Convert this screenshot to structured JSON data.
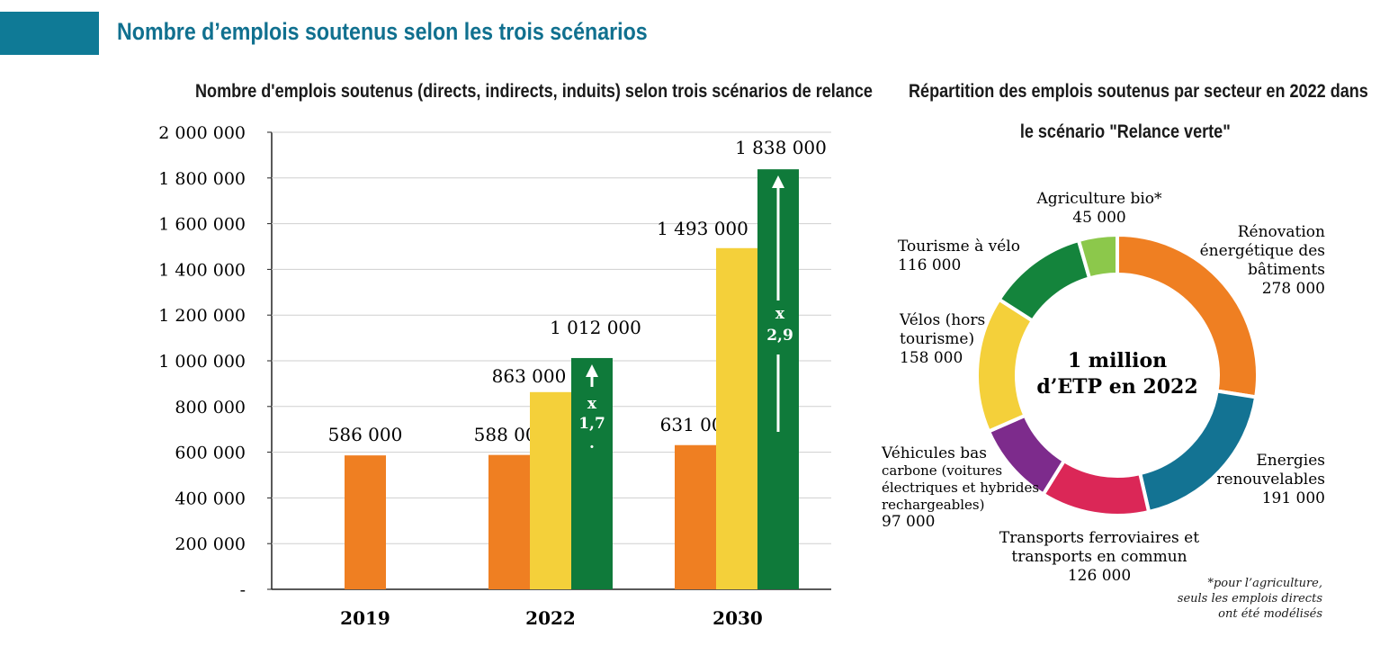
{
  "page": {
    "title": "Nombre d’emplois soutenus selon les trois scénarios",
    "accent_color": "#0f7a96",
    "title_color": "#10708f"
  },
  "chart_data": [
    {
      "type": "bar",
      "title": "Nombre d'emplois soutenus (directs, indirects, induits) selon trois scénarios de relance",
      "categories": [
        "2019",
        "2022",
        "2030"
      ],
      "series": [
        {
          "color": "#ef7f22",
          "values": [
            586000,
            588000,
            631000
          ]
        },
        {
          "color": "#f4d03a",
          "values": [
            null,
            863000,
            1493000
          ]
        },
        {
          "color": "#0f7a3a",
          "values": [
            null,
            1012000,
            1838000
          ]
        }
      ],
      "value_labels": [
        [
          "586 000",
          "588 000",
          "631 000"
        ],
        [
          null,
          "863 000",
          "1 493 000"
        ],
        [
          null,
          "1 012 000",
          "1 838 000"
        ]
      ],
      "ylim": [
        0,
        2000000
      ],
      "yticks": [
        0,
        200000,
        400000,
        600000,
        800000,
        1000000,
        1200000,
        1400000,
        1600000,
        1800000,
        2000000
      ],
      "ytick_labels": [
        "-",
        "200 000",
        "400 000",
        "600 000",
        "800 000",
        "1 000 000",
        "1 200 000",
        "1 400 000",
        "1 600 000",
        "1 800 000",
        "2 000 000"
      ],
      "annotations": [
        {
          "category": "2022",
          "lines": [
            "x",
            "1,7",
            "."
          ]
        },
        {
          "category": "2030",
          "lines": [
            "x",
            "2,9"
          ]
        }
      ],
      "xlabel": "",
      "ylabel": "",
      "grid": true
    },
    {
      "type": "pie",
      "title_lines": [
        "Répartition des emplois soutenus par secteur en 2022 dans",
        "le scénario \"Relance verte\""
      ],
      "center_label": [
        "1 million",
        "d’ETP en 2022"
      ],
      "slices": [
        {
          "name": [
            "Rénovation",
            "énergétique des",
            "bâtiments"
          ],
          "value": 278000,
          "value_label": "278 000",
          "color": "#ef7f22"
        },
        {
          "name": [
            "Energies",
            "renouvelables"
          ],
          "value": 191000,
          "value_label": "191 000",
          "color": "#137393"
        },
        {
          "name": [
            "Transports ferroviaires et",
            "transports en commun"
          ],
          "value": 126000,
          "value_label": "126 000",
          "color": "#db2757"
        },
        {
          "name": [
            "Véhicules bas",
            "carbone (voitures",
            "électriques et hybrides",
            "rechargeables)"
          ],
          "value": 97000,
          "value_label": "97 000",
          "color": "#7d2b8c"
        },
        {
          "name": [
            "Vélos (hors",
            "tourisme)"
          ],
          "value": 158000,
          "value_label": "158 000",
          "color": "#f4d03a"
        },
        {
          "name": [
            "Tourisme à vélo"
          ],
          "value": 116000,
          "value_label": "116 000",
          "color": "#14843c"
        },
        {
          "name": [
            "Agriculture bio*"
          ],
          "value": 45000,
          "value_label": "45 000",
          "color": "#8cc84b"
        }
      ],
      "note": "*pour l’agriculture,\nseuls les emplois directs\nont été modélisés"
    }
  ]
}
